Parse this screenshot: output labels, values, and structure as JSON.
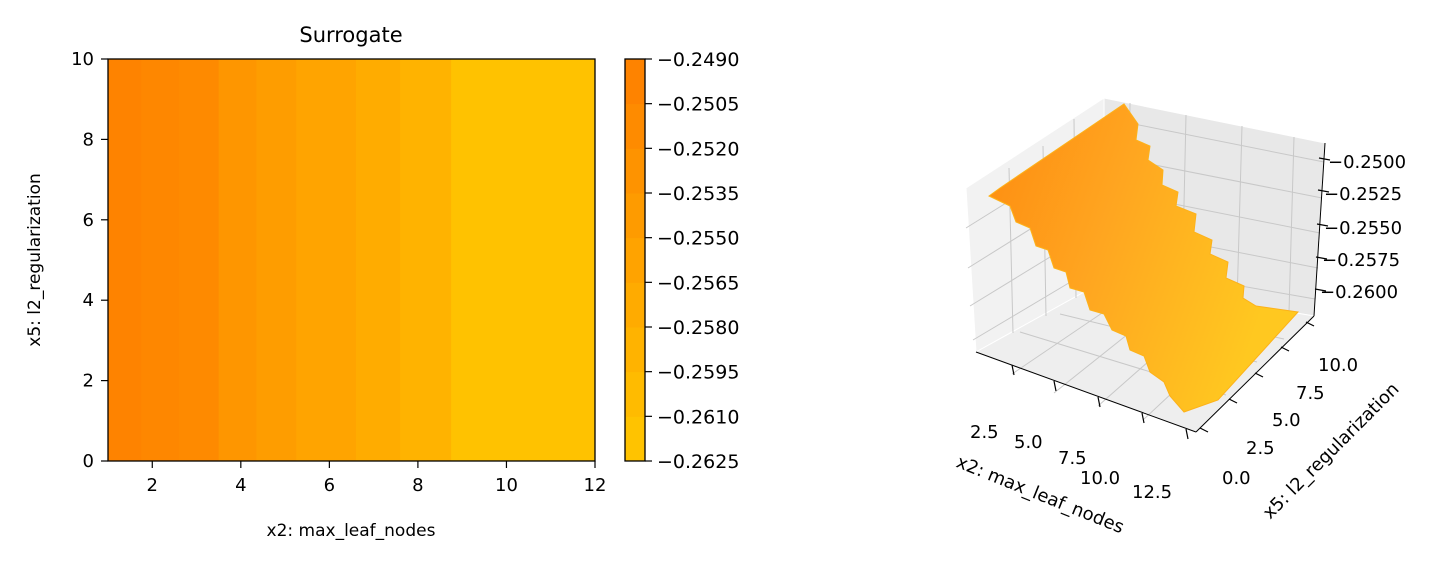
{
  "chart_data": [
    {
      "type": "heatmap",
      "title": "Surrogate",
      "xlabel": "x2: max_leaf_nodes",
      "ylabel": "x5: l2_regularization",
      "xlim": [
        1,
        12
      ],
      "ylim": [
        0,
        10
      ],
      "xticks": [
        "2",
        "4",
        "6",
        "8",
        "10",
        "12"
      ],
      "yticks": [
        "0",
        "2",
        "4",
        "6",
        "8",
        "10"
      ],
      "bands": [
        {
          "x0": 1.0,
          "x1": 1.75,
          "value": -0.2492
        },
        {
          "x0": 1.75,
          "x1": 2.6,
          "value": -0.25
        },
        {
          "x0": 2.6,
          "x1": 3.5,
          "value": -0.2507
        },
        {
          "x0": 3.5,
          "x1": 4.35,
          "value": -0.253
        },
        {
          "x0": 4.35,
          "x1": 5.25,
          "value": -0.2545
        },
        {
          "x0": 5.25,
          "x1": 6.6,
          "value": -0.256
        },
        {
          "x0": 6.6,
          "x1": 7.6,
          "value": -0.2575
        },
        {
          "x0": 7.6,
          "x1": 8.75,
          "value": -0.259
        },
        {
          "x0": 8.75,
          "x1": 12.0,
          "value": -0.262
        }
      ],
      "colorbar": {
        "min": -0.2625,
        "max": -0.249,
        "ticks": [
          "−0.2490",
          "−0.2505",
          "−0.2520",
          "−0.2535",
          "−0.2550",
          "−0.2565",
          "−0.2580",
          "−0.2595",
          "−0.2610",
          "−0.2625"
        ],
        "colors": [
          "#ffc300",
          "#ffbb00",
          "#ffb300",
          "#ffab00",
          "#ffa300",
          "#fe9b00",
          "#fe9300",
          "#fe8b00",
          "#fe8300"
        ]
      },
      "colors": {
        "high": "#fe8200",
        "low": "#ffc400"
      }
    },
    {
      "type": "surface",
      "xlabel": "x2: max_leaf_nodes",
      "ylabel": "x5: l2_regularization",
      "xticks": [
        "2.5",
        "5.0",
        "7.5",
        "10.0",
        "12.5"
      ],
      "yticks": [
        "0.0",
        "2.5",
        "5.0",
        "7.5",
        "10.0"
      ],
      "zticks": [
        "−0.2500",
        "−0.2525",
        "−0.2550",
        "−0.2575",
        "−0.2600"
      ],
      "surface_top": "#fe8c10",
      "surface_bottom": "#ffc820"
    }
  ]
}
